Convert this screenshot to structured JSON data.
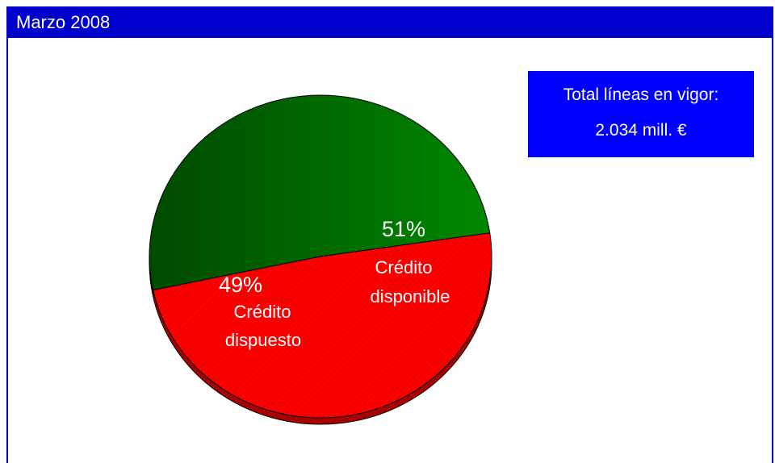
{
  "header": {
    "title": "Marzo 2008"
  },
  "total_box": {
    "label": "Total líneas en vigor:",
    "value": "2.034 mill. €"
  },
  "colors": {
    "frame": "#0000cc",
    "box": "#0000ff",
    "credito_disponible": "#007a00",
    "credito_dispuesto": "#ff0000"
  },
  "chart_data": {
    "type": "pie",
    "title": "Marzo 2008",
    "slices": [
      {
        "percent_label": "51%",
        "label_line1": "Crédito",
        "label_line2": "disponible",
        "value": 51,
        "color": "#007a00"
      },
      {
        "percent_label": "49%",
        "label_line1": "Crédito",
        "label_line2": "dispuesto",
        "value": 49,
        "color": "#ff0000"
      }
    ]
  }
}
